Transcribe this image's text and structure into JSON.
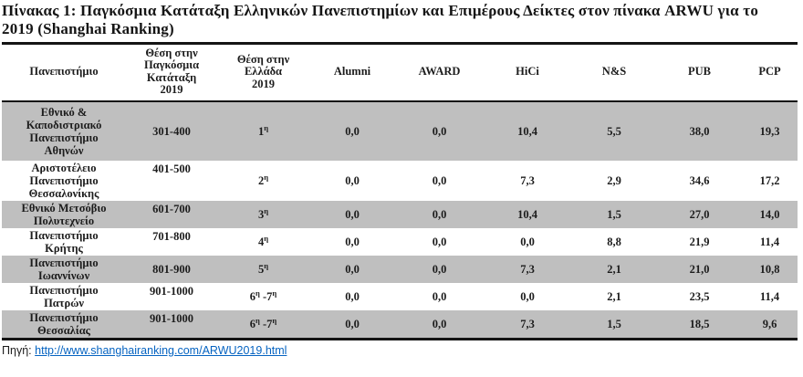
{
  "title": "Πίνακας 1: Παγκόσμια  Κατάταξη Ελληνικών Πανεπιστημίων και  Επιμέρους Δείκτες στον πίνακα ARWU για το\n2019 (Shanghai Ranking)",
  "table": {
    "columns": [
      {
        "key": "university",
        "label": "Πανεπιστήμιο"
      },
      {
        "key": "world_rank",
        "label": "Θέση στην\nΠαγκόσμια\nΚατάταξη\n2019"
      },
      {
        "key": "greece_rank",
        "label": "Θέση στην\nΕλλάδα\n2019"
      },
      {
        "key": "alumni",
        "label": "Alumni"
      },
      {
        "key": "award",
        "label": "AWARD"
      },
      {
        "key": "hici",
        "label": "HiCi"
      },
      {
        "key": "ns",
        "label": "N&S"
      },
      {
        "key": "pub",
        "label": "PUB"
      },
      {
        "key": "pcp",
        "label": "PCP"
      }
    ],
    "rows": [
      {
        "university": "Εθνικό &\nΚαποδιστριακό\nΠανεπιστήμιο\nΑθηνών",
        "world_rank": "301-400",
        "greece_rank": "1η",
        "alumni": "0,0",
        "award": "0,0",
        "hici": "10,4",
        "ns": "5,5",
        "pub": "38,0",
        "pcp": "19,3"
      },
      {
        "university": "Αριστοτέλειο\nΠανεπιστήμιο\nΘεσσαλονίκης",
        "world_rank": "401-500",
        "greece_rank": "2η",
        "alumni": "0,0",
        "award": "0,0",
        "hici": "7,3",
        "ns": "2,9",
        "pub": "34,6",
        "pcp": "17,2"
      },
      {
        "university": "Εθνικό Μετσόβιο\nΠολυτεχνείο",
        "world_rank": "601-700",
        "greece_rank": "3η",
        "alumni": "0,0",
        "award": "0,0",
        "hici": "10,4",
        "ns": "1,5",
        "pub": "27,0",
        "pcp": "14,0"
      },
      {
        "university": "Πανεπιστήμιο\nΚρήτης",
        "world_rank": "701-800",
        "greece_rank": "4η",
        "alumni": "0,0",
        "award": "0,0",
        "hici": "0,0",
        "ns": "8,8",
        "pub": "21,9",
        "pcp": "11,4"
      },
      {
        "university": "Πανεπιστήμιο\nΙωαννίνων",
        "world_rank": "801-900",
        "greece_rank": "5η",
        "alumni": "0,0",
        "award": "0,0",
        "hici": "7,3",
        "ns": "2,1",
        "pub": "21,0",
        "pcp": "10,8"
      },
      {
        "university": "Πανεπιστήμιο\nΠατρών",
        "world_rank": "901-1000",
        "greece_rank": "6η -7η",
        "alumni": "0,0",
        "award": "0,0",
        "hici": "0,0",
        "ns": "2,1",
        "pub": "23,5",
        "pcp": "11,4"
      },
      {
        "university": "Πανεπιστήμιο\nΘεσσαλίας",
        "world_rank": "901-1000",
        "greece_rank": "6η -7η",
        "alumni": "0,0",
        "award": "0,0",
        "hici": "7,3",
        "ns": "1,5",
        "pub": "18,5",
        "pcp": "9,6"
      }
    ]
  },
  "source": {
    "label": "Πηγή:",
    "url_text": "http://www.shanghairanking.com/ARWU2019.html"
  },
  "colors": {
    "row_shade": "#bfbfbf",
    "link": "#0563c1"
  }
}
